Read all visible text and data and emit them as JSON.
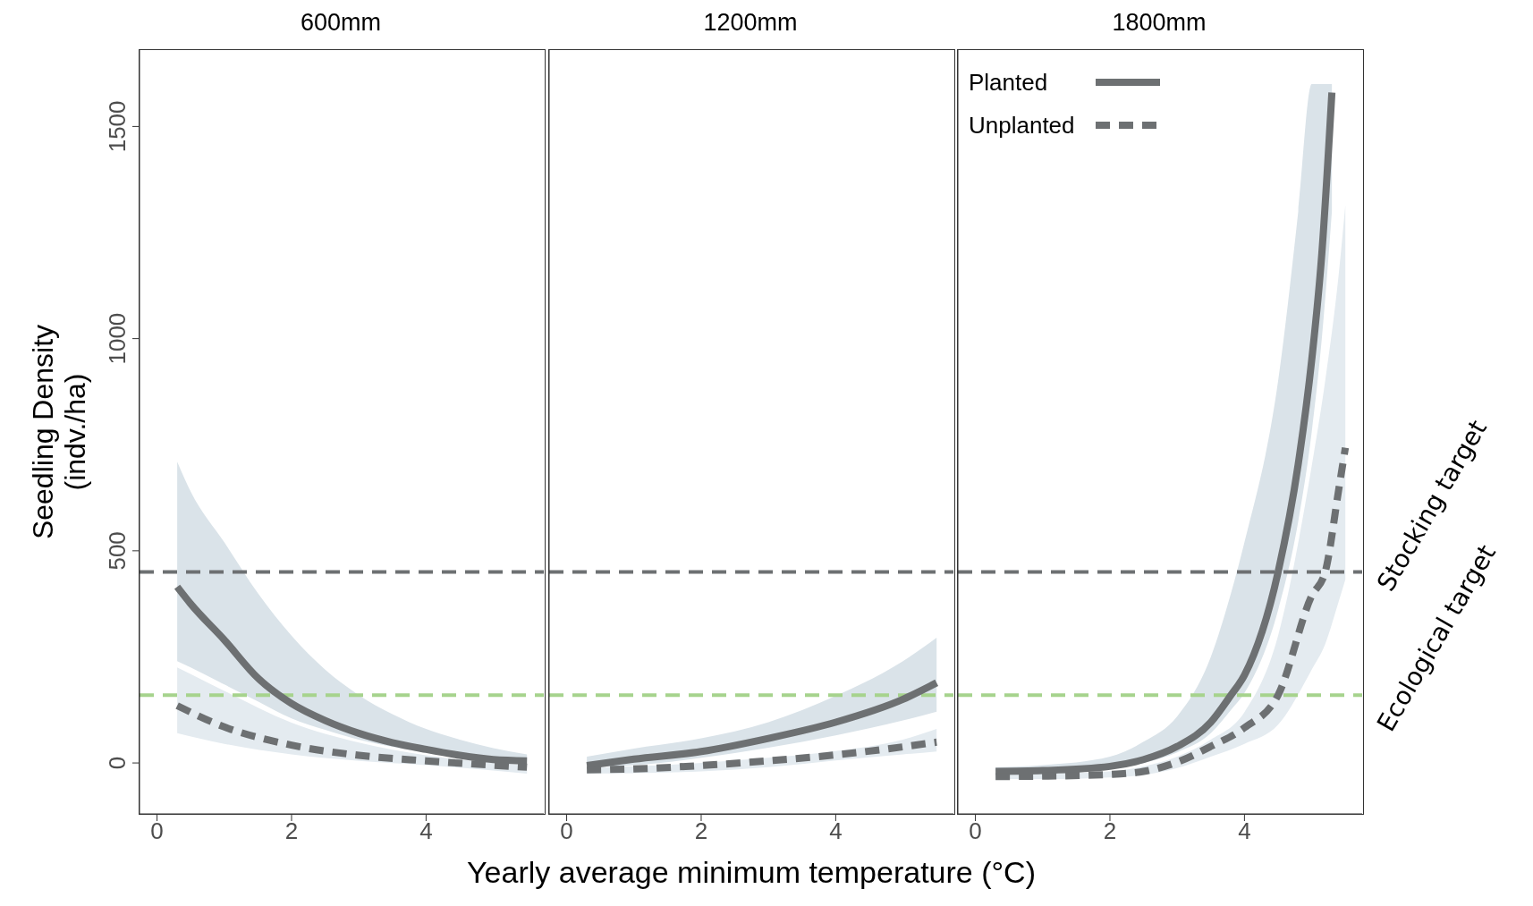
{
  "chart_data": [
    {
      "type": "line",
      "title": "600mm",
      "ylabel": "Seedling Density\n(indv./ha)",
      "xlim": [
        -0.26,
        5.75
      ],
      "xticks": [
        0,
        2,
        4
      ],
      "ylim": [
        -120,
        1680
      ],
      "yticks": [
        0,
        500,
        1000,
        1500
      ],
      "legend": false,
      "ref_lines": [
        {
          "axis": "y",
          "value": 450,
          "color": "#6d7072",
          "line_style": "dashed"
        },
        {
          "axis": "y",
          "value": 160,
          "color": "#a6d38d",
          "line_style": "dashed"
        }
      ],
      "series": [
        {
          "color": "#6d7072",
          "line_style": "solid",
          "x": [
            0.3,
            0.5,
            1,
            1.5,
            2,
            2.5,
            3,
            3.5,
            4,
            4.5,
            5,
            5.5
          ],
          "values": [
            415,
            375,
            290,
            200,
            140,
            100,
            70,
            48,
            32,
            18,
            8,
            5
          ],
          "lower": [
            240,
            225,
            185,
            145,
            105,
            78,
            55,
            38,
            25,
            12,
            5,
            0
          ],
          "upper": [
            710,
            640,
            520,
            400,
            300,
            220,
            160,
            115,
            80,
            55,
            35,
            20
          ]
        },
        {
          "color": "#6d7072",
          "line_style": "dashed",
          "x": [
            0.3,
            1,
            2,
            3,
            4,
            5.5
          ],
          "values": [
            135,
            85,
            42,
            18,
            5,
            -10
          ],
          "lower": [
            70,
            45,
            20,
            5,
            -5,
            -25
          ],
          "upper": [
            225,
            170,
            95,
            48,
            18,
            -5
          ]
        }
      ]
    },
    {
      "type": "line",
      "title": "1200mm",
      "xlabel": "Yearly average minimum temperature (°C)",
      "xlim": [
        -0.26,
        5.75
      ],
      "xticks": [
        0,
        2,
        4
      ],
      "ylim": [
        -120,
        1680
      ],
      "yticks": [
        0,
        500,
        1000,
        1500
      ],
      "tick_labels": "x",
      "legend": false,
      "ref_lines": [
        {
          "axis": "y",
          "value": 450,
          "color": "#6d7072",
          "line_style": "dashed"
        },
        {
          "axis": "y",
          "value": 160,
          "color": "#a6d38d",
          "line_style": "dashed"
        }
      ],
      "series": [
        {
          "color": "#6d7072",
          "line_style": "solid",
          "x": [
            0.3,
            1,
            2,
            3,
            4,
            5,
            5.5
          ],
          "values": [
            -6,
            9,
            27,
            58,
            96,
            150,
            189
          ],
          "lower": [
            -10,
            -5,
            12,
            36,
            65,
            100,
            121
          ],
          "upper": [
            15,
            34,
            58,
            96,
            158,
            240,
            295
          ]
        },
        {
          "color": "#6d7072",
          "line_style": "dashed",
          "x": [
            0.3,
            1,
            2,
            3,
            4,
            5,
            5.5
          ],
          "values": [
            -16,
            -14,
            -6,
            5,
            19,
            38,
            49
          ],
          "lower": [
            -25,
            -24,
            -20,
            -10,
            6,
            20,
            27
          ],
          "upper": [
            -12,
            -8,
            0,
            12,
            28,
            55,
            80
          ]
        }
      ]
    },
    {
      "type": "line",
      "title": "1800mm",
      "xlim": [
        -0.26,
        5.75
      ],
      "xticks": [
        0,
        2,
        4
      ],
      "ylim": [
        -120,
        1680
      ],
      "yticks": [
        0,
        500,
        1000,
        1500
      ],
      "tick_labels": "x",
      "legend": "top left",
      "ref_lines": [
        {
          "axis": "y",
          "value": 450,
          "label": "Stocking target",
          "color": "#6d7072",
          "line_style": "dashed"
        },
        {
          "axis": "y",
          "value": 160,
          "label": "Ecological target",
          "color": "#a6d38d",
          "line_style": "dashed"
        }
      ],
      "series": [
        {
          "name": "Planted",
          "color": "#6d7072",
          "line_style": "solid",
          "x": [
            0.3,
            1,
            2,
            2.5,
            3,
            3.5,
            3.8,
            4,
            4.5,
            4.8,
            5,
            5.15,
            5.3
          ],
          "values": [
            -20,
            -18,
            -8,
            8,
            39,
            96,
            160,
            207,
            450,
            705,
            950,
            1200,
            1580
          ],
          "lower": [
            -24,
            -22,
            -14,
            0,
            25,
            70,
            125,
            165,
            360,
            570,
            780,
            1000,
            1300
          ],
          "upper": [
            -10,
            -5,
            15,
            50,
            110,
            250,
            400,
            520,
            900,
            1300,
            1600,
            1600,
            1600
          ]
        },
        {
          "name": "Unplanted",
          "color": "#6d7072",
          "line_style": "dashed",
          "x": [
            0.3,
            1,
            2,
            2.5,
            3,
            3.5,
            4,
            4.5,
            5,
            5.2,
            5.4,
            5.5
          ],
          "values": [
            -32,
            -31,
            -27,
            -20,
            2,
            39,
            83,
            160,
            394,
            450,
            643,
            743
          ],
          "lower": [
            -38,
            -38,
            -34,
            -28,
            -12,
            15,
            45,
            90,
            220,
            280,
            380,
            432
          ],
          "upper": [
            -26,
            -25,
            -20,
            -8,
            15,
            55,
            120,
            300,
            700,
            900,
            1150,
            1315
          ]
        }
      ]
    }
  ]
}
